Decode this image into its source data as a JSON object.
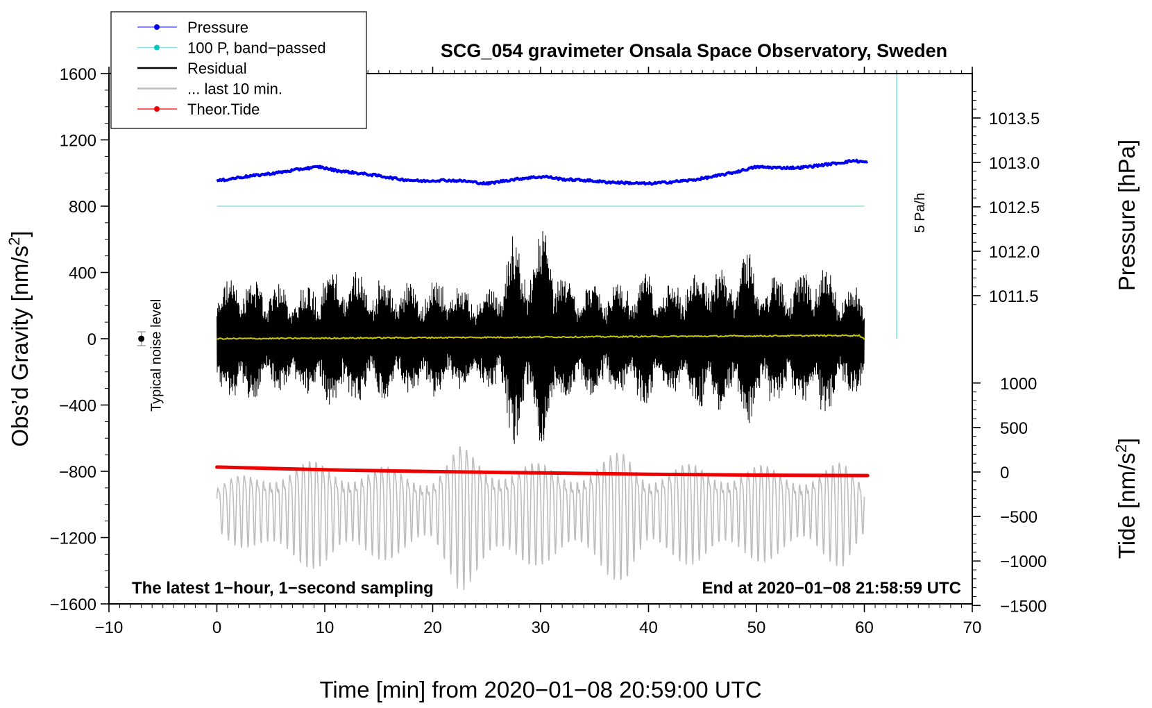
{
  "chart_data": {
    "type": "line",
    "title": "SCG_054 gravimeter Onsala Space Observatory, Sweden",
    "xlabel": "Time [min] from 2020−01−08 20:59:00 UTC",
    "xlim": [
      -10,
      70
    ],
    "xticks": [
      -10,
      0,
      10,
      20,
      30,
      40,
      50,
      60,
      70
    ],
    "xtick_labels": [
      "−10",
      "0",
      "10",
      "20",
      "30",
      "40",
      "50",
      "60",
      "70"
    ],
    "left_axis": {
      "label": "Obs’d Gravity [nm/s²]",
      "label_main": "Obs’d Gravity [nm/s",
      "label_sup": "2",
      "label_end": "]",
      "ylim": [
        -1600,
        1600
      ],
      "ticks": [
        -1600,
        -1200,
        -800,
        -400,
        0,
        400,
        800,
        1200,
        1600
      ],
      "tick_labels": [
        "−1600",
        "−1200",
        "−800",
        "−400",
        "0",
        "400",
        "800",
        "1200",
        "1600"
      ]
    },
    "right_upper_axis": {
      "label": "Pressure [hPa]",
      "ticks": [
        1011.5,
        1012.0,
        1012.5,
        1013.0,
        1013.5
      ],
      "tick_labels": [
        "1011.5",
        "1012.0",
        "1012.5",
        "1013.0",
        "1013.5"
      ]
    },
    "right_lower_axis": {
      "label": "Tide [nm/s²]",
      "label_main": "Tide [nm/s",
      "label_sup": "2",
      "label_end": "]",
      "ticks": [
        -1500,
        -1000,
        -500,
        0,
        500,
        1000
      ],
      "tick_labels": [
        "−1500",
        "−1000",
        "−500",
        "0",
        "500",
        "1000"
      ]
    },
    "legend": {
      "placement": "top-left",
      "entries": [
        {
          "label": "Pressure",
          "color": "#0000ee",
          "marker": "dot"
        },
        {
          "label": "100 P, band−passed",
          "color": "#00c8c8",
          "marker": "dot"
        },
        {
          "label": "Residual",
          "color": "#000000",
          "marker": "line"
        },
        {
          "label": "... last 10 min.",
          "color": "#bdbdbd",
          "marker": "line"
        },
        {
          "label": "Theor.Tide",
          "color": "#ee0000",
          "marker": "dot"
        }
      ]
    },
    "series": [
      {
        "name": "Pressure",
        "color": "#0000ee",
        "axis": "right_upper",
        "x": [
          0,
          2,
          4,
          6,
          8,
          9.5,
          11,
          13,
          15,
          17,
          19,
          21,
          23,
          25,
          27,
          29,
          30.5,
          32,
          34,
          36,
          38,
          40,
          42,
          44,
          46,
          48,
          50,
          52,
          54,
          56,
          58,
          59,
          60.3
        ],
        "y": [
          1012.79,
          1012.83,
          1012.86,
          1012.89,
          1012.93,
          1012.95,
          1012.91,
          1012.88,
          1012.85,
          1012.81,
          1012.79,
          1012.8,
          1012.79,
          1012.76,
          1012.8,
          1012.83,
          1012.84,
          1012.81,
          1012.8,
          1012.78,
          1012.77,
          1012.76,
          1012.78,
          1012.8,
          1012.84,
          1012.89,
          1012.95,
          1012.94,
          1012.94,
          1012.97,
          1013.0,
          1013.02,
          1013.0
        ]
      },
      {
        "name": "100 P, band−passed",
        "color": "#00c8c8",
        "axis": "left",
        "x": [
          0,
          60
        ],
        "y": [
          800,
          800
        ]
      },
      {
        "name": "Residual",
        "color": "#000000",
        "axis": "left",
        "x": [
          0,
          2,
          4,
          6,
          8,
          10,
          12,
          14,
          16,
          18,
          20,
          22,
          24,
          26,
          27.5,
          29,
          30.5,
          32,
          34,
          36,
          38,
          40,
          42,
          44,
          46,
          48,
          48.8,
          50,
          52,
          54,
          56,
          58,
          60
        ],
        "envelope": [
          300,
          420,
          350,
          330,
          320,
          400,
          460,
          380,
          360,
          350,
          360,
          340,
          300,
          330,
          660,
          480,
          740,
          380,
          350,
          330,
          360,
          400,
          330,
          400,
          480,
          380,
          630,
          420,
          380,
          390,
          470,
          350,
          330
        ]
      },
      {
        "name": "Residual (yellow trace)",
        "color": "#c8c800",
        "axis": "left",
        "x": [
          0,
          59.5,
          60
        ],
        "y": [
          0,
          20,
          0
        ]
      },
      {
        "name": "... last 10 min.",
        "color": "#bdbdbd",
        "axis": "left",
        "x": [
          0,
          5,
          10,
          15,
          20,
          22.5,
          25,
          30,
          35,
          38,
          40,
          45,
          50,
          55,
          58,
          60
        ],
        "envelope": [
          150,
          300,
          320,
          280,
          250,
          430,
          350,
          300,
          300,
          420,
          280,
          300,
          290,
          260,
          310,
          200
        ]
      },
      {
        "name": "Theor.Tide",
        "color": "#ee0000",
        "axis": "right_lower",
        "x": [
          0,
          10,
          20,
          30,
          40,
          50,
          60.3
        ],
        "y": [
          55,
          25,
          5,
          -10,
          -25,
          -35,
          -40
        ]
      }
    ],
    "annotations": {
      "noise_label": "Typical noise level",
      "rate_label": "5 Pa/h",
      "bottom_left": "The latest 1−hour, 1−second sampling",
      "bottom_right": "End at 2020−01−08 21:58:59 UTC"
    }
  }
}
